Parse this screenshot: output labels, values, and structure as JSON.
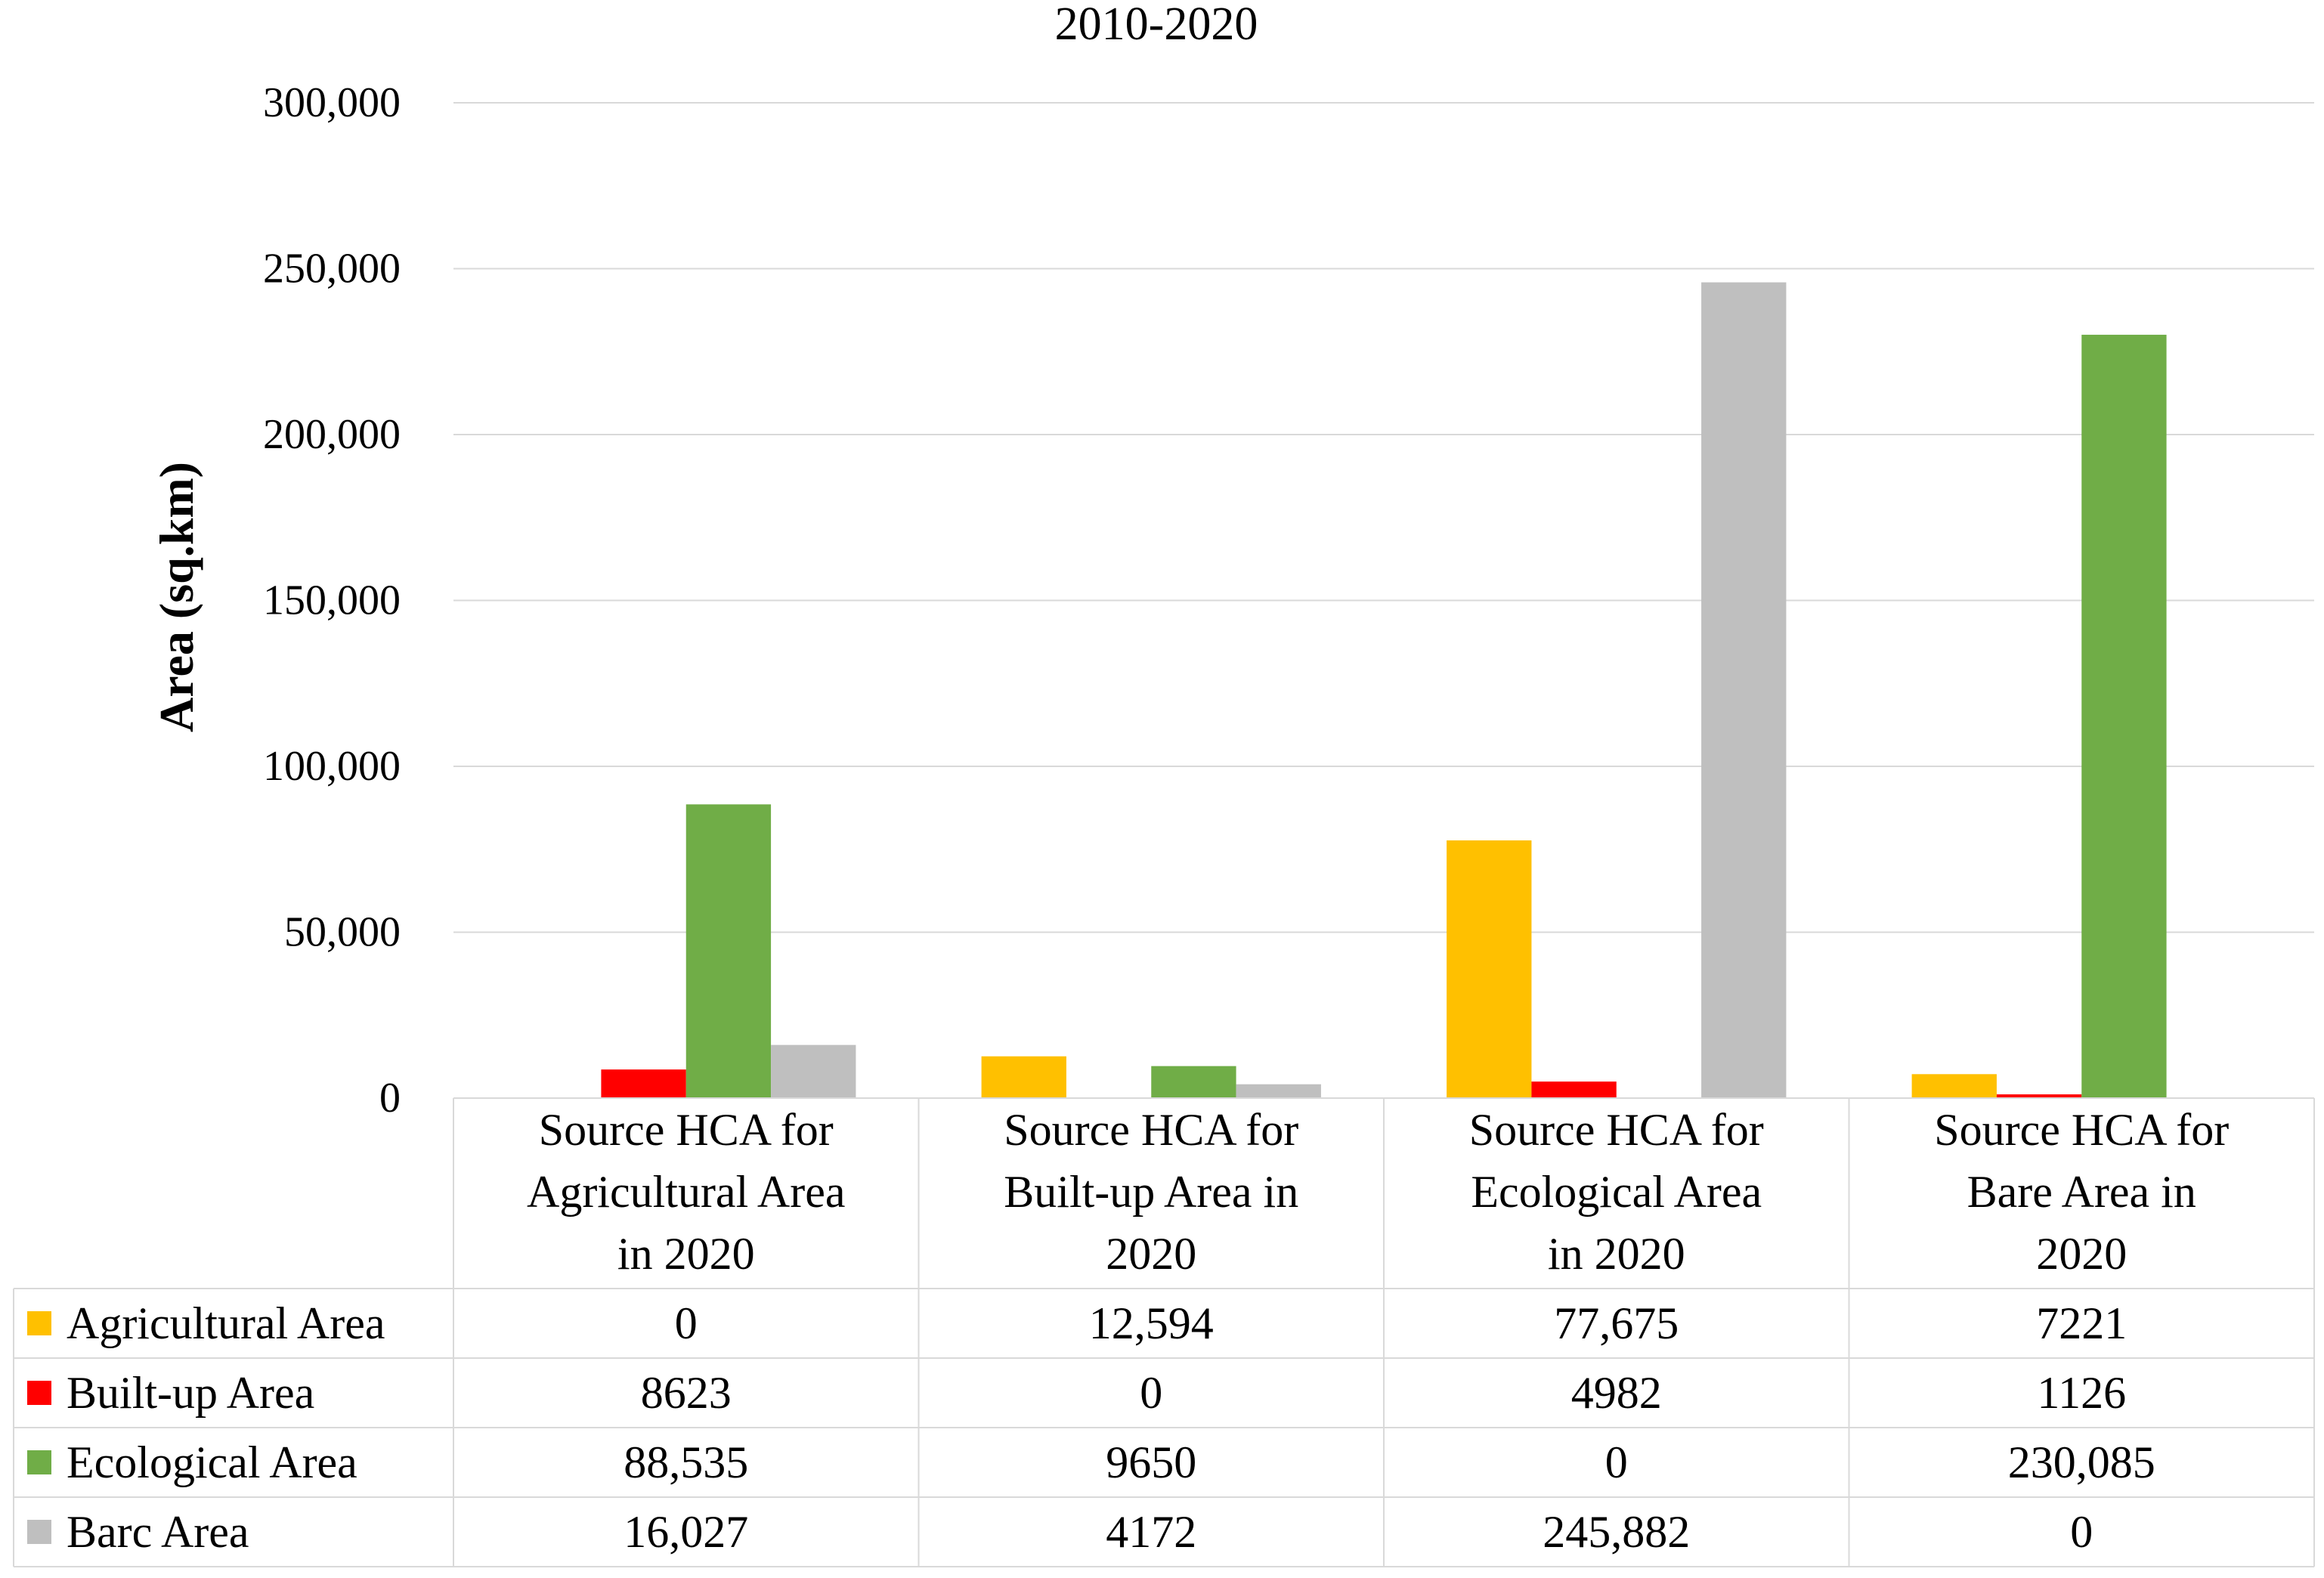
{
  "chart_data": {
    "type": "bar",
    "title": "2010-2020",
    "ylabel": "Area (sq.km)",
    "xlabel": "",
    "ylim": [
      0,
      300000
    ],
    "yticks": [
      0,
      50000,
      100000,
      150000,
      200000,
      250000,
      300000
    ],
    "ytick_labels": [
      "0",
      "50,000",
      "100,000",
      "150,000",
      "200,000",
      "250,000",
      "300,000"
    ],
    "grid": true,
    "legend": "data-table-below",
    "categories": [
      [
        "Source HCA for",
        "Agricultural Area",
        "in 2020"
      ],
      [
        "Source HCA for",
        "Built-up Area in",
        "2020"
      ],
      [
        "Source HCA for",
        "Ecological Area",
        "in 2020"
      ],
      [
        "Source HCA for",
        "Bare Area in",
        "2020"
      ]
    ],
    "series": [
      {
        "name": "Agricultural Area",
        "color": "#FFC000",
        "values": [
          0,
          12594,
          77675,
          7221
        ],
        "labels": [
          "0",
          "12,594",
          "77,675",
          "7221"
        ]
      },
      {
        "name": "Built-up Area",
        "color": "#FF0000",
        "values": [
          8623,
          0,
          4982,
          1126
        ],
        "labels": [
          "8623",
          "0",
          "4982",
          "1126"
        ]
      },
      {
        "name": "Ecological Area",
        "color": "#70AD47",
        "values": [
          88535,
          9650,
          0,
          230085
        ],
        "labels": [
          "88,535",
          "9650",
          "0",
          "230,085"
        ]
      },
      {
        "name": "Barc Area",
        "color": "#BFBFBF",
        "values": [
          16027,
          4172,
          245882,
          0
        ],
        "labels": [
          "16,027",
          "4172",
          "245,882",
          "0"
        ]
      }
    ]
  }
}
